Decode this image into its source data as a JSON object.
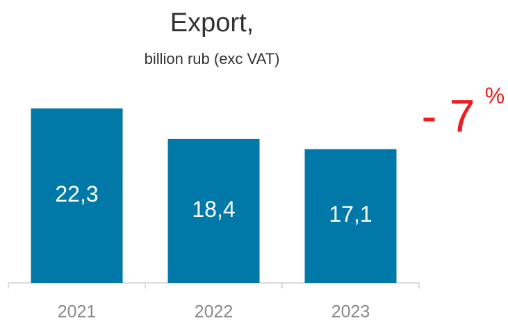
{
  "chart_data": {
    "type": "bar",
    "title": "Export,",
    "subtitle": "billion rub (exc VAT)",
    "categories": [
      "2021",
      "2022",
      "2023"
    ],
    "values": [
      22.3,
      18.4,
      17.1
    ],
    "value_labels": [
      "22,3",
      "18,4",
      "17,1"
    ],
    "color": "#0079a8",
    "annotations": [
      {
        "text": "- 7",
        "color": "#ee1c1c"
      },
      {
        "text": "%",
        "color": "#ee1c1c"
      }
    ]
  }
}
